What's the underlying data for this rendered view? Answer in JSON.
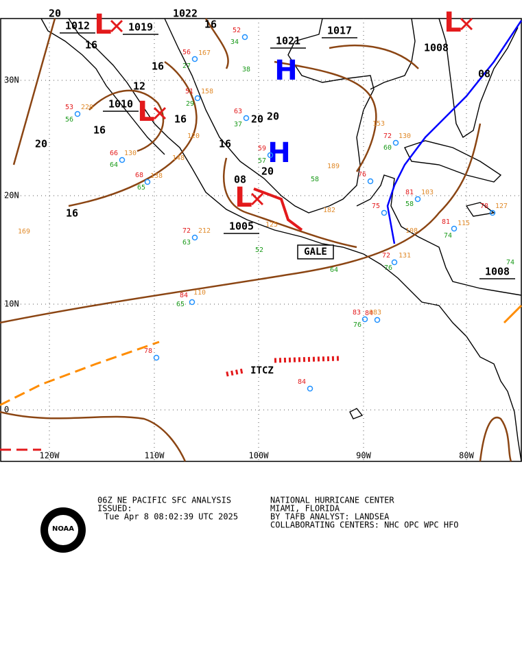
{
  "map": {
    "lat_labels": [
      "30N",
      "20N",
      "10N",
      "0"
    ],
    "lon_labels": [
      "120W",
      "110W",
      "100W",
      "90W",
      "80W"
    ],
    "isobar_labels": [
      "20",
      "1012",
      "1019",
      "1022",
      "16",
      "1017",
      "1021",
      "1008",
      "08",
      "16",
      "16",
      "12",
      "1010",
      "16",
      "16",
      "20",
      "20",
      "20",
      "16",
      "20",
      "08",
      "1005",
      "16",
      "1008"
    ],
    "highs": [
      "H",
      "H"
    ],
    "lows": [
      "L",
      "L",
      "L",
      "L"
    ],
    "gale": "GALE",
    "itcz": "ITCZ",
    "station_temps": [
      "52",
      "84",
      "56",
      "51",
      "53",
      "63",
      "59",
      "76",
      "72",
      "68",
      "66",
      "72",
      "84",
      "78",
      "83",
      "84",
      "75",
      "81",
      "72",
      "81",
      "78"
    ],
    "station_dewpoints": [
      "34",
      "38",
      "27",
      "29",
      "56",
      "37",
      "57",
      "58",
      "63",
      "65",
      "64",
      "60",
      "52",
      "65",
      "76",
      "64",
      "58",
      "74",
      "76",
      "74"
    ],
    "station_pressures": [
      "167",
      "158",
      "220",
      "120",
      "130",
      "148",
      "138",
      "212",
      "125",
      "110",
      "083",
      "189",
      "153",
      "130",
      "103",
      "115",
      "127",
      "131",
      "108",
      "182",
      "169"
    ]
  },
  "footer": {
    "product": "06Z NE PACIFIC SFC ANALYSIS",
    "issued": "ISSUED:",
    "time": "Tue Apr 8 08:02:39 UTC 2025",
    "center": "NATIONAL HURRICANE CENTER",
    "location": "MIAMI, FLORIDA",
    "analyst": "BY TAFB ANALYST: LANDSEA",
    "collab": "COLLABORATING CENTERS: NHC OPC WPC HFO",
    "logo": "NOAA"
  }
}
